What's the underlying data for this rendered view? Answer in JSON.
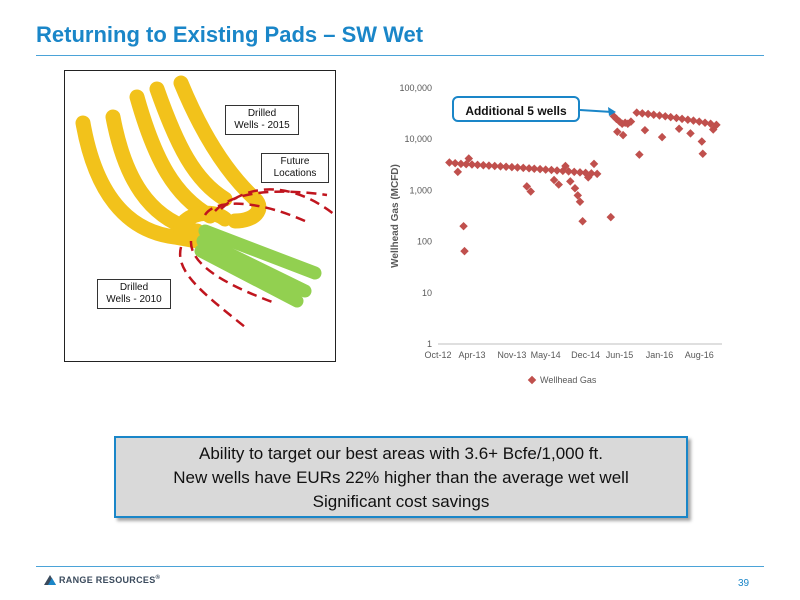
{
  "slide": {
    "title": "Returning to Existing Pads – SW Wet",
    "page_number": "39",
    "footer_logo_text": "RANGE RESOURCES",
    "footer_logo_mark": "®"
  },
  "map": {
    "label_2015": [
      "Drilled",
      "Wells - 2015"
    ],
    "label_future": [
      "Future",
      "Locations"
    ],
    "label_2010": [
      "Drilled",
      "Wells - 2010"
    ],
    "colors": {
      "wells_2015": "#f2c21b",
      "wells_2010": "#92d050",
      "future": "#c0151e"
    }
  },
  "callout": {
    "text": "Additional 5 wells"
  },
  "message": {
    "lines": [
      "Ability to target our best areas with 3.6+ Bcfe/1,000 ft.",
      "New wells have EURs 22% higher than the average wet well",
      "Significant cost savings"
    ]
  },
  "chart_data": {
    "type": "scatter",
    "y_scale": "log",
    "ylabel": "Wellhead Gas (MCFD)",
    "xlabel": "",
    "ylim": [
      1,
      100000
    ],
    "y_ticks": [
      "1",
      "10",
      "100",
      "1,000",
      "10,000",
      "100,000"
    ],
    "x_ticks": [
      "Oct-12",
      "Apr-13",
      "Nov-13",
      "May-14",
      "Dec-14",
      "Jun-15",
      "Jan-16",
      "Aug-16"
    ],
    "xlim": [
      "2012-10-01",
      "2016-12-01"
    ],
    "legend": "bottom",
    "marker_color": "#c0504d",
    "series": [
      {
        "name": "Wellhead Gas",
        "points": [
          [
            "2012-12-01",
            3500
          ],
          [
            "2013-01-01",
            3400
          ],
          [
            "2013-02-01",
            3300
          ],
          [
            "2013-03-01",
            3250
          ],
          [
            "2013-04-01",
            3200
          ],
          [
            "2013-05-01",
            3150
          ],
          [
            "2013-06-01",
            3100
          ],
          [
            "2013-07-01",
            3050
          ],
          [
            "2013-08-01",
            3000
          ],
          [
            "2013-09-01",
            2950
          ],
          [
            "2013-10-01",
            2900
          ],
          [
            "2013-11-01",
            2850
          ],
          [
            "2013-12-01",
            2800
          ],
          [
            "2014-01-01",
            2750
          ],
          [
            "2014-02-01",
            2700
          ],
          [
            "2014-03-01",
            2650
          ],
          [
            "2014-04-01",
            2600
          ],
          [
            "2014-05-01",
            2550
          ],
          [
            "2014-06-01",
            2500
          ],
          [
            "2014-07-01",
            2450
          ],
          [
            "2014-08-01",
            2400
          ],
          [
            "2014-09-01",
            2350
          ],
          [
            "2014-10-01",
            2300
          ],
          [
            "2014-11-01",
            2250
          ],
          [
            "2014-12-01",
            2200
          ],
          [
            "2015-01-01",
            2150
          ],
          [
            "2015-02-01",
            2100
          ],
          [
            "2013-01-15",
            2300
          ],
          [
            "2013-02-15",
            200
          ],
          [
            "2013-02-20",
            65
          ],
          [
            "2013-03-15",
            4200
          ],
          [
            "2014-01-20",
            1200
          ],
          [
            "2014-02-10",
            950
          ],
          [
            "2014-06-15",
            1600
          ],
          [
            "2014-07-10",
            1300
          ],
          [
            "2014-08-15",
            3000
          ],
          [
            "2014-09-10",
            1500
          ],
          [
            "2014-10-05",
            1100
          ],
          [
            "2014-10-20",
            800
          ],
          [
            "2014-11-01",
            600
          ],
          [
            "2014-11-15",
            250
          ],
          [
            "2014-12-15",
            1800
          ],
          [
            "2015-01-15",
            3300
          ],
          [
            "2015-04-15",
            300
          ],
          [
            "2015-05-01",
            28000
          ],
          [
            "2015-05-15",
            25000
          ],
          [
            "2015-06-01",
            22000
          ],
          [
            "2015-06-15",
            20000
          ],
          [
            "2015-07-01",
            21000
          ],
          [
            "2015-07-15",
            20000
          ],
          [
            "2015-08-01",
            22000
          ],
          [
            "2015-09-01",
            33000
          ],
          [
            "2015-10-01",
            32000
          ],
          [
            "2015-11-01",
            31000
          ],
          [
            "2015-12-01",
            30000
          ],
          [
            "2016-01-01",
            29000
          ],
          [
            "2016-02-01",
            28000
          ],
          [
            "2016-03-01",
            27000
          ],
          [
            "2016-04-01",
            26000
          ],
          [
            "2016-05-01",
            25000
          ],
          [
            "2016-06-01",
            24000
          ],
          [
            "2016-07-01",
            23000
          ],
          [
            "2016-08-01",
            22000
          ],
          [
            "2016-09-01",
            21000
          ],
          [
            "2016-10-01",
            20000
          ],
          [
            "2016-11-01",
            19000
          ],
          [
            "2015-05-20",
            14000
          ],
          [
            "2015-06-20",
            12000
          ],
          [
            "2015-09-15",
            5000
          ],
          [
            "2015-10-15",
            15000
          ],
          [
            "2016-01-15",
            11000
          ],
          [
            "2016-04-15",
            16000
          ],
          [
            "2016-06-15",
            13000
          ],
          [
            "2016-08-15",
            9000
          ],
          [
            "2016-08-20",
            5200
          ],
          [
            "2016-10-15",
            15500
          ]
        ]
      }
    ]
  }
}
